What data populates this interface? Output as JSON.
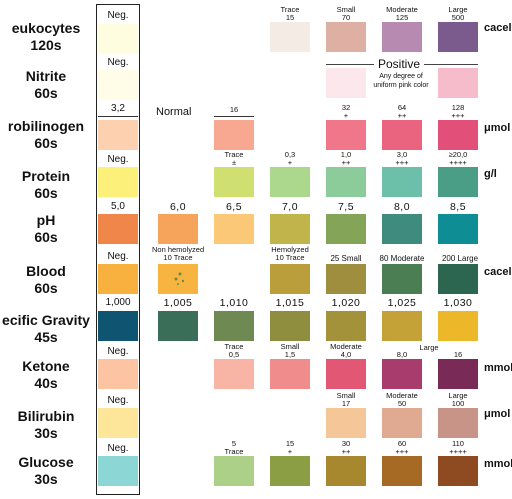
{
  "rows": [
    {
      "label_l1": "eukocytes",
      "label_l2": "120s",
      "neg": "Neg.",
      "unit": "cacel"
    },
    {
      "label_l1": "Nitrite",
      "label_l2": "60s",
      "neg": "Neg.",
      "unit": ""
    },
    {
      "label_l1": "robilinogen",
      "label_l2": "60s",
      "neg": "3,2",
      "unit": "μmol"
    },
    {
      "label_l1": "Protein",
      "label_l2": "60s",
      "neg": "Neg.",
      "unit": "g/l"
    },
    {
      "label_l1": "pH",
      "label_l2": "60s",
      "neg": "5,0",
      "unit": ""
    },
    {
      "label_l1": "Blood",
      "label_l2": "60s",
      "neg": "Neg.",
      "unit": "cacel"
    },
    {
      "label_l1": "ecific Gravity",
      "label_l2": "45s",
      "neg": "1,000",
      "unit": ""
    },
    {
      "label_l1": "Ketone",
      "label_l2": "40s",
      "neg": "Neg.",
      "unit": "mmol"
    },
    {
      "label_l1": "Bilirubin",
      "label_l2": "30s",
      "neg": "Neg.",
      "unit": "μmol"
    },
    {
      "label_l1": "Glucose",
      "label_l2": "30s",
      "neg": "Neg.",
      "unit": "mmol"
    }
  ],
  "leukocytes": {
    "cap1_a": "Trace",
    "cap1_b": "15",
    "cap2_a": "Small",
    "cap2_b": "70",
    "cap3_a": "Moderate",
    "cap3_b": "125",
    "cap4_a": "Large",
    "cap4_b": "500"
  },
  "nitrite": {
    "positive": "Positive",
    "note": "Any degree of uniform pink color"
  },
  "urobilinogen": {
    "normal": "Normal",
    "c1": "16",
    "c2a": "32",
    "c2b": "+",
    "c3a": "64",
    "c3b": "++",
    "c4a": "128",
    "c4b": "+++"
  },
  "protein": {
    "c1a": "Trace",
    "c1b": "±",
    "c2a": "0,3",
    "c2b": "+",
    "c3a": "1,0",
    "c3b": "++",
    "c4a": "3,0",
    "c4b": "+++",
    "c5a": "≥20,0",
    "c5b": "++++"
  },
  "ph": {
    "v1": "6,0",
    "v2": "6,5",
    "v3": "7,0",
    "v4": "7,5",
    "v5": "8,0",
    "v6": "8,5"
  },
  "blood": {
    "nonhem": "Non hemolyzed",
    "nonhem2": "10 Trace",
    "hem": "Hemolyzed",
    "hem2": "10 Trace",
    "small": "25 Small",
    "mod": "80 Moderate",
    "large": "200 Large"
  },
  "sg": {
    "v1": "1,005",
    "v2": "1,010",
    "v3": "1,015",
    "v4": "1,020",
    "v5": "1,025",
    "v6": "1,030"
  },
  "ketone": {
    "c1a": "Trace",
    "c1b": "0,5",
    "c2a": "Small",
    "c2b": "1,5",
    "c3a": "Moderate",
    "c3b": "4,0",
    "c4a": "8,0",
    "c5a": "Large",
    "c5b": "16"
  },
  "bilirubin": {
    "c1a": "Small",
    "c1b": "17",
    "c2a": "Moderate",
    "c2b": "50",
    "c3a": "Large",
    "c3b": "100"
  },
  "glucose": {
    "c1a": "5",
    "c1b": "Trace",
    "c2a": "15",
    "c2b": "+",
    "c3a": "30",
    "c3b": "++",
    "c4a": "60",
    "c4b": "+++",
    "c5a": "110",
    "c5b": "++++"
  }
}
